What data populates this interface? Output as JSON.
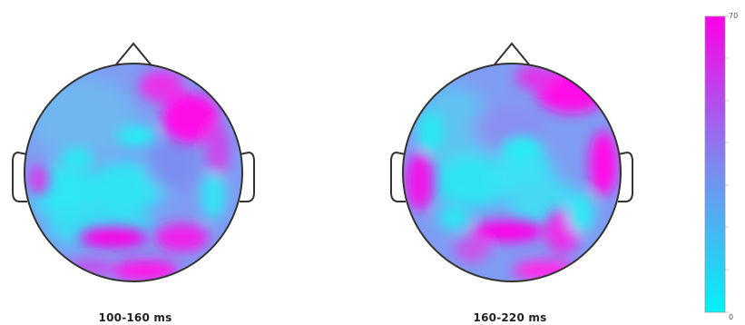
{
  "maps": [
    {
      "label": "100-160 ms"
    },
    {
      "label": "160-220 ms"
    }
  ],
  "colorbar": {
    "max_label": "70",
    "min_label": "0",
    "low_color": "#00f2f6",
    "mid_color": "#7f86f0",
    "high_color": "#ff00e8"
  }
}
